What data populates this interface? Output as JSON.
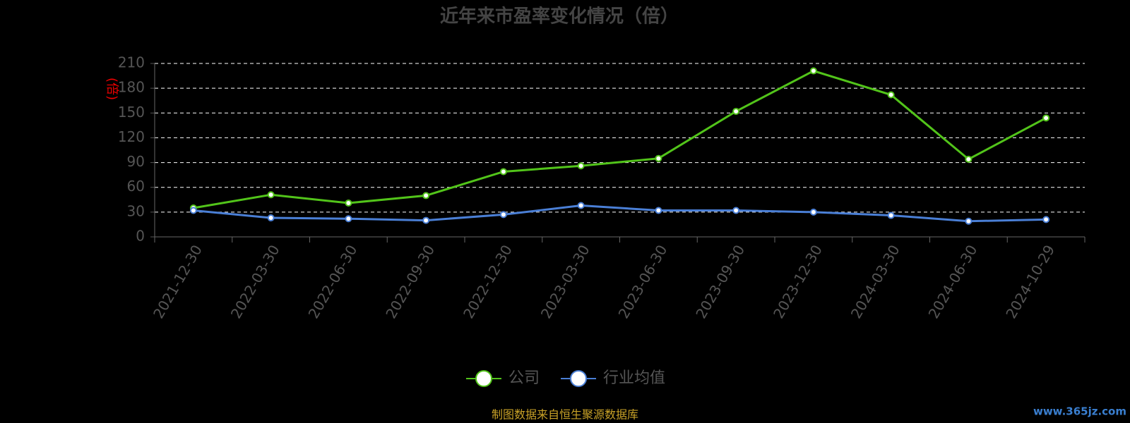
{
  "chart_data": {
    "type": "line",
    "title": "近年来市盈率变化情况（倍）",
    "y_label": "(倍)",
    "categories": [
      "2021-12-30",
      "2022-03-30",
      "2022-06-30",
      "2022-09-30",
      "2022-12-30",
      "2023-03-30",
      "2023-06-30",
      "2023-09-30",
      "2023-12-30",
      "2024-03-30",
      "2024-06-30",
      "2024-10-29"
    ],
    "series": [
      {
        "name": "公司",
        "color": "#52c41a",
        "values": [
          35,
          51,
          41,
          50,
          79,
          86,
          95,
          152,
          201,
          172,
          94,
          144
        ]
      },
      {
        "name": "行业均值",
        "color": "#4a7fd6",
        "values": [
          32,
          23,
          22,
          20,
          27,
          38,
          32,
          32,
          30,
          26,
          19,
          21
        ]
      }
    ],
    "ylim": [
      0,
      210
    ],
    "yticks": [
      0,
      30,
      60,
      90,
      120,
      150,
      180,
      210
    ],
    "grid": true,
    "legend": "bottom",
    "source": "制图数据来自恒生聚源数据库",
    "watermark": "www.365jz.com"
  }
}
